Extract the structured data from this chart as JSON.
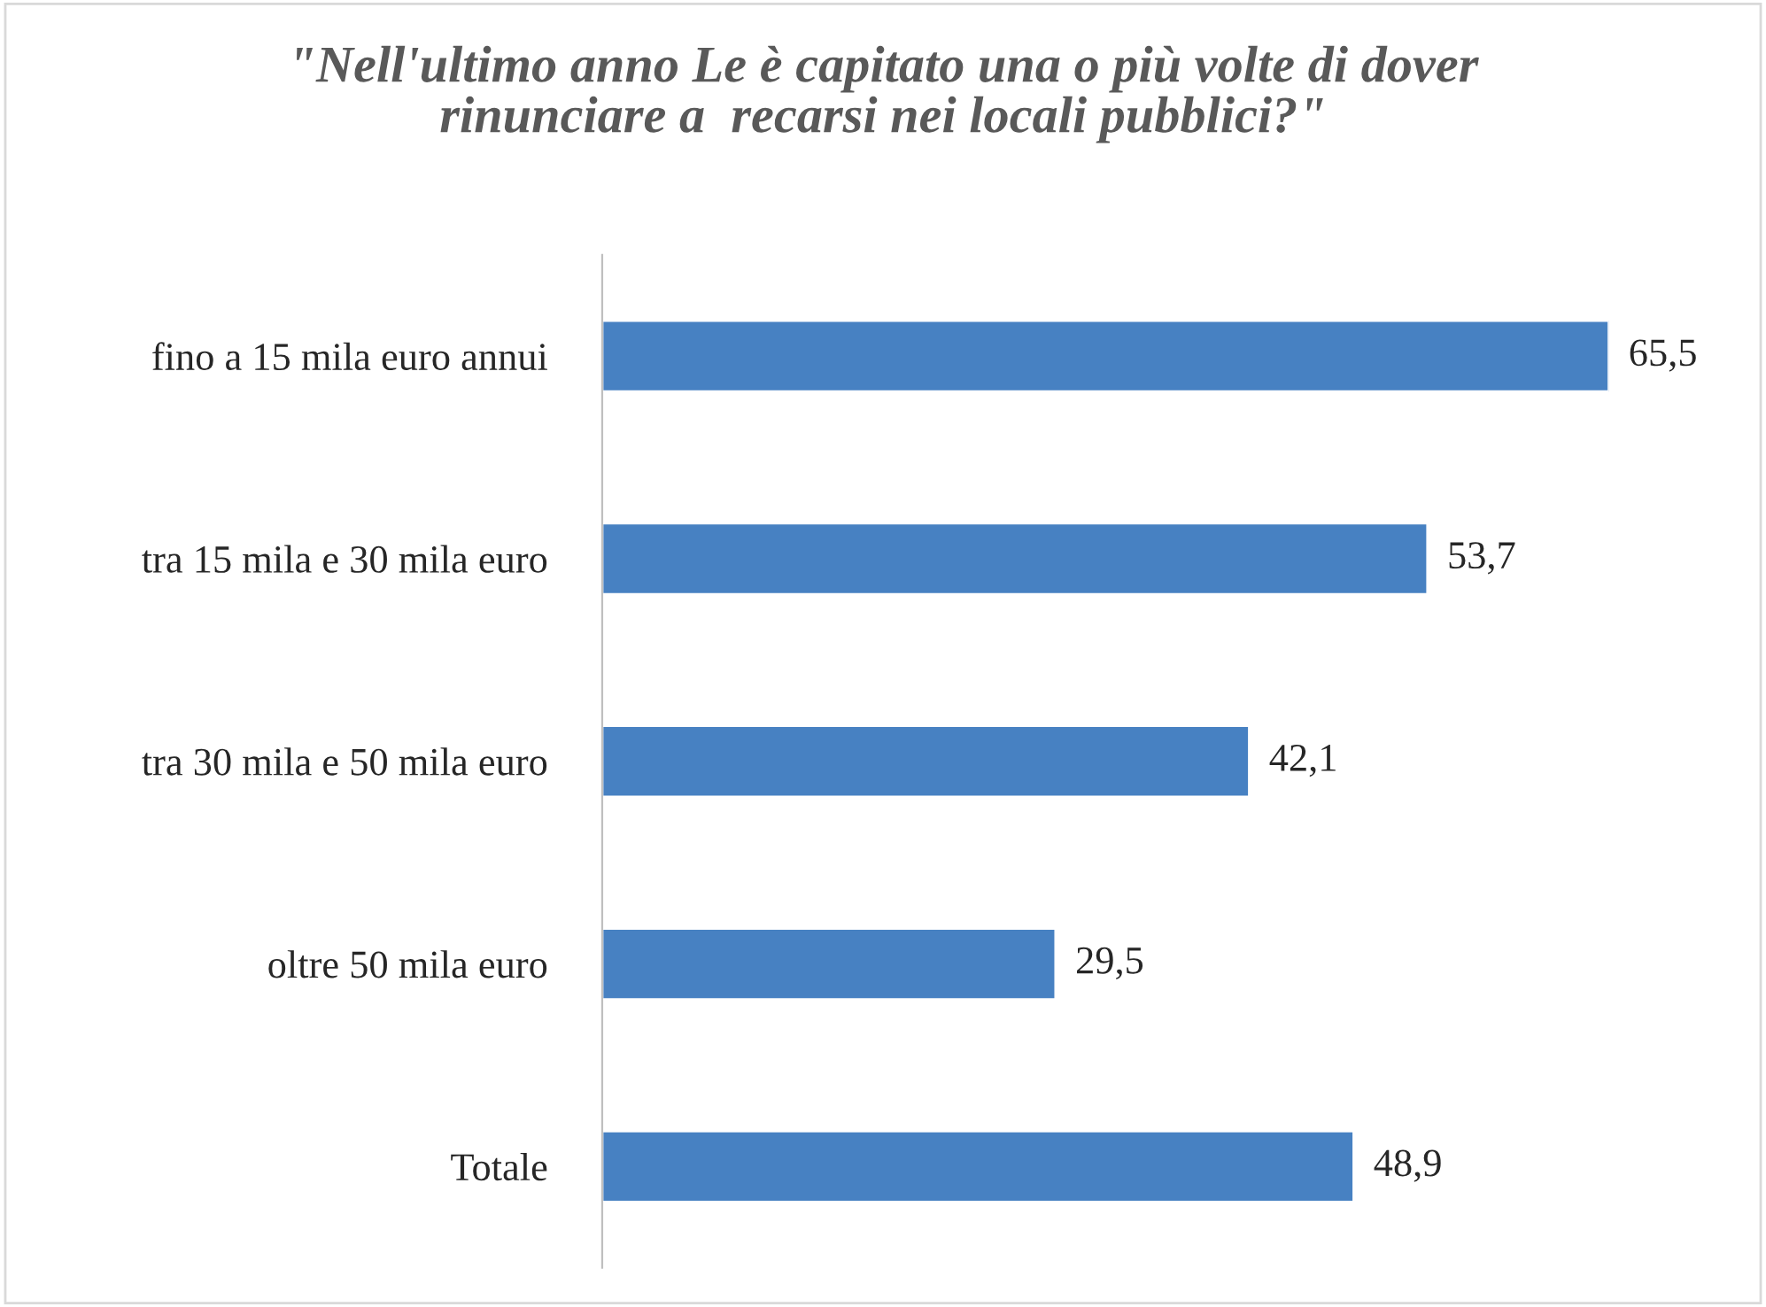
{
  "chart_data": {
    "type": "bar",
    "orientation": "horizontal",
    "title": "\"Nell'ultimo anno Le è capitato una o più volte di dover\nrinunciare a  recarsi nei locali pubblici?\"",
    "categories": [
      "fino a 15 mila euro annui",
      "tra 15 mila e 30 mila euro",
      "tra 30 mila e 50 mila euro",
      "oltre 50 mila euro",
      "Totale"
    ],
    "values": [
      65.5,
      53.7,
      42.1,
      29.5,
      48.9
    ],
    "value_labels": [
      "65,5",
      "53,7",
      "42,1",
      "29,5",
      "48,9"
    ],
    "color": "#4781c2",
    "grid": false,
    "legend": false
  }
}
